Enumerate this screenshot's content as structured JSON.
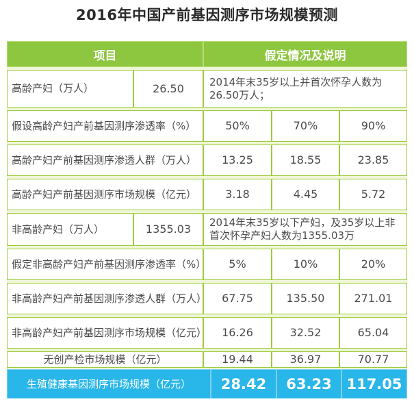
{
  "title": "2016年中国产前基因测序市场规模预测",
  "header": {
    "item": "项目",
    "assumption": "假定情况及说明"
  },
  "rows": {
    "r1": {
      "label": "高龄产妇（万人）",
      "value": "26.50",
      "note": "2014年末35岁以上并首次怀孕人数为26.50万人；"
    },
    "r2": {
      "label": "假设高龄产妇产前基因测序渗透率（%）",
      "v1": "50%",
      "v2": "70%",
      "v3": "90%"
    },
    "r3": {
      "label": "高龄产妇产前基因测序渗透人群（万人）",
      "v1": "13.25",
      "v2": "18.55",
      "v3": "23.85"
    },
    "r4": {
      "label": "高龄产妇产前基因测序市场规模（亿元）",
      "v1": "3.18",
      "v2": "4.45",
      "v3": "5.72"
    },
    "r5": {
      "label": "非高龄产妇（万人）",
      "value": "1355.03",
      "note": "2014年末35岁以下产妇，及35岁以上非首次怀孕产妇人数为1355.03万"
    },
    "r6": {
      "label": "假定非高龄产妇产前基因测序渗透率（%）",
      "v1": "5%",
      "v2": "10%",
      "v3": "20%"
    },
    "r7": {
      "label": "非高龄产妇产前基因测序渗透人群（万人）",
      "v1": "67.75",
      "v2": "135.50",
      "v3": "271.01"
    },
    "r8": {
      "label": "非高龄产妇产前基因测序市场规模（亿元）",
      "v1": "16.26",
      "v2": "32.52",
      "v3": "65.04"
    },
    "r9": {
      "label": "无创产检市场规模（亿元）",
      "v1": "19.44",
      "v2": "36.97",
      "v3": "70.77"
    }
  },
  "footer": {
    "label": "生殖健康基因测序市场规模（亿元）",
    "v1": "28.42",
    "v2": "63.23",
    "v3": "117.05"
  },
  "colors": {
    "header_green": "#8dc63f",
    "border_green": "#9ccb3b",
    "footer_blue": "#29b6e8"
  }
}
